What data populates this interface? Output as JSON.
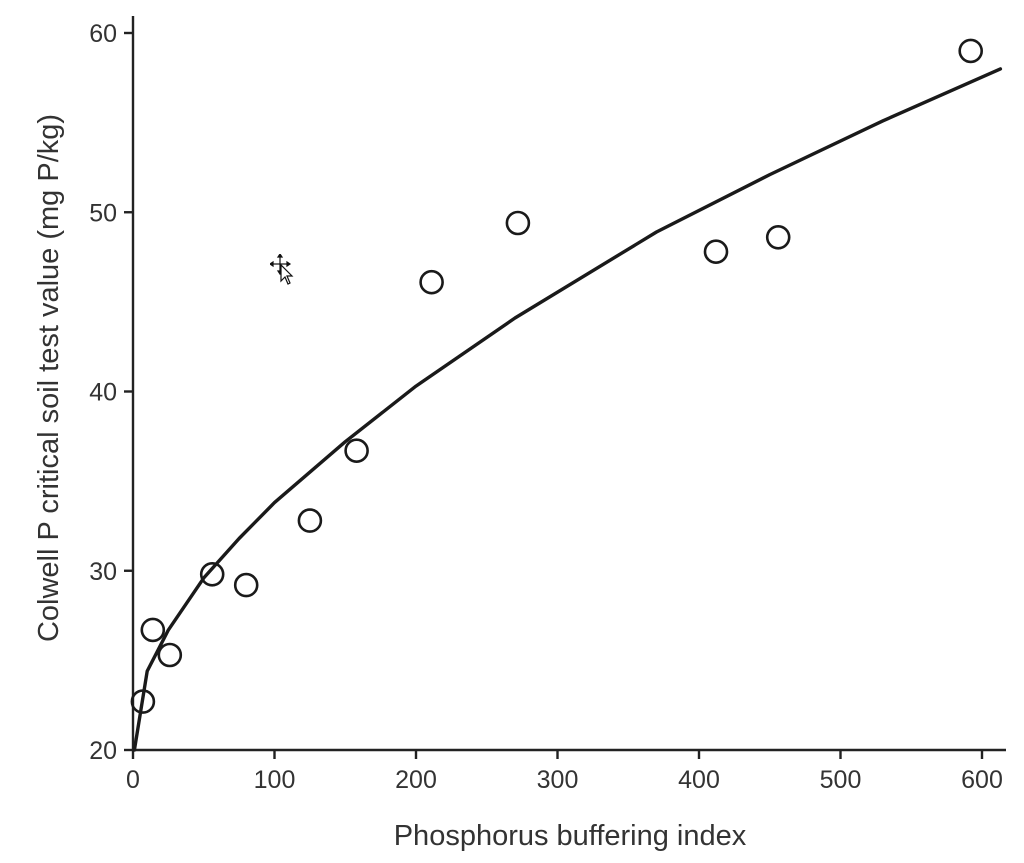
{
  "chart_data": {
    "type": "scatter",
    "title": "",
    "xlabel": "Phosphorus buffering index",
    "ylabel": "Colwell P critical soil test value (mg P/kg)",
    "xlim": [
      0,
      615
    ],
    "ylim": [
      20,
      62
    ],
    "x_ticks": [
      0,
      100,
      200,
      300,
      400,
      500,
      600
    ],
    "y_ticks": [
      20,
      30,
      40,
      50,
      60
    ],
    "grid": false,
    "legend": "none",
    "series": [
      {
        "kind": "points",
        "marker": "open-circle",
        "points": [
          {
            "x": 7,
            "y": 22.7
          },
          {
            "x": 14,
            "y": 26.7
          },
          {
            "x": 26,
            "y": 25.3
          },
          {
            "x": 56,
            "y": 29.8
          },
          {
            "x": 80,
            "y": 29.2
          },
          {
            "x": 125,
            "y": 32.8
          },
          {
            "x": 158,
            "y": 36.7
          },
          {
            "x": 211,
            "y": 46.1
          },
          {
            "x": 272,
            "y": 49.4
          },
          {
            "x": 412,
            "y": 47.8
          },
          {
            "x": 456,
            "y": 48.6
          },
          {
            "x": 592,
            "y": 59.0
          }
        ]
      },
      {
        "kind": "fitted-curve",
        "points": [
          {
            "x": 1,
            "y": 20.0
          },
          {
            "x": 10,
            "y": 24.4
          },
          {
            "x": 25,
            "y": 26.7
          },
          {
            "x": 50,
            "y": 29.6
          },
          {
            "x": 75,
            "y": 31.8
          },
          {
            "x": 100,
            "y": 33.8
          },
          {
            "x": 150,
            "y": 37.2
          },
          {
            "x": 200,
            "y": 40.3
          },
          {
            "x": 270,
            "y": 44.1
          },
          {
            "x": 370,
            "y": 48.9
          },
          {
            "x": 450,
            "y": 52.1
          },
          {
            "x": 530,
            "y": 55.1
          },
          {
            "x": 613,
            "y": 58.0
          }
        ]
      }
    ]
  },
  "overlay": {
    "cursor_icon": "move-cursor-icon"
  }
}
